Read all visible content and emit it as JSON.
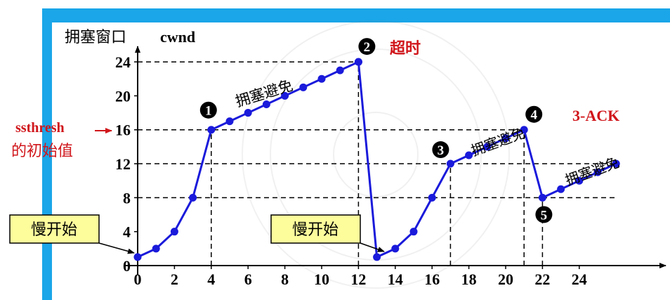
{
  "chart_data": {
    "type": "line",
    "ylabel": "拥塞窗口",
    "ylabel_unit": "cwnd",
    "x_ticks": [
      "0",
      "2",
      "4",
      "6",
      "8",
      "10",
      "12",
      "14",
      "16",
      "18",
      "20",
      "22",
      "24"
    ],
    "y_ticks": [
      "0",
      "4",
      "8",
      "12",
      "16",
      "20",
      "24"
    ],
    "xlim": [
      0,
      26
    ],
    "ylim": [
      0,
      26
    ],
    "grid": false,
    "series": [
      {
        "segment": 1,
        "x": [
          0,
          1,
          2,
          3,
          4,
          5,
          6,
          7,
          8,
          9,
          10,
          11,
          12
        ],
        "y": [
          1,
          2,
          4,
          8,
          16,
          17,
          18,
          19,
          20,
          21,
          22,
          23,
          24
        ]
      },
      {
        "segment": 2,
        "x": [
          12,
          13,
          14,
          15,
          16,
          17,
          18,
          19,
          20,
          21,
          22,
          23,
          24,
          25,
          26
        ],
        "y": [
          24,
          1,
          2,
          4,
          8,
          12,
          13,
          14,
          15,
          16,
          8,
          9,
          10,
          11,
          12
        ]
      }
    ],
    "reference_lines": [
      {
        "axis": "y",
        "value": 24,
        "x_end": 12
      },
      {
        "axis": "y",
        "value": 16,
        "x_end": 21
      },
      {
        "axis": "y",
        "value": 12,
        "x_end": 26
      },
      {
        "axis": "y",
        "value": 8,
        "x_end": 26
      },
      {
        "axis": "x",
        "value": 4,
        "y_end": 16
      },
      {
        "axis": "x",
        "value": 12,
        "y_end": 24
      },
      {
        "axis": "x",
        "value": 17,
        "y_end": 12
      },
      {
        "axis": "x",
        "value": 21,
        "y_end": 16
      },
      {
        "axis": "x",
        "value": 22,
        "y_end": 8
      }
    ],
    "markers": [
      {
        "num": "1",
        "x": 4,
        "y": 16
      },
      {
        "num": "2",
        "x": 12,
        "y": 24
      },
      {
        "num": "3",
        "x": 17,
        "y": 12
      },
      {
        "num": "4",
        "x": 21,
        "y": 16
      },
      {
        "num": "5",
        "x": 22,
        "y": 8
      }
    ],
    "annotations": {
      "timeout": "超时",
      "three_ack": "3-ACK",
      "ssthresh_line1": "ssthresh",
      "ssthresh_line2": "的初始值",
      "congestion_avoidance": "拥塞避免",
      "slow_start": "慢开始"
    },
    "colors": {
      "line": "#1a1adb",
      "axis": "#000000",
      "accent_red": "#d0161b",
      "callout_fill": "#fdfd9c",
      "side_bar": "#1aa6e8"
    }
  }
}
